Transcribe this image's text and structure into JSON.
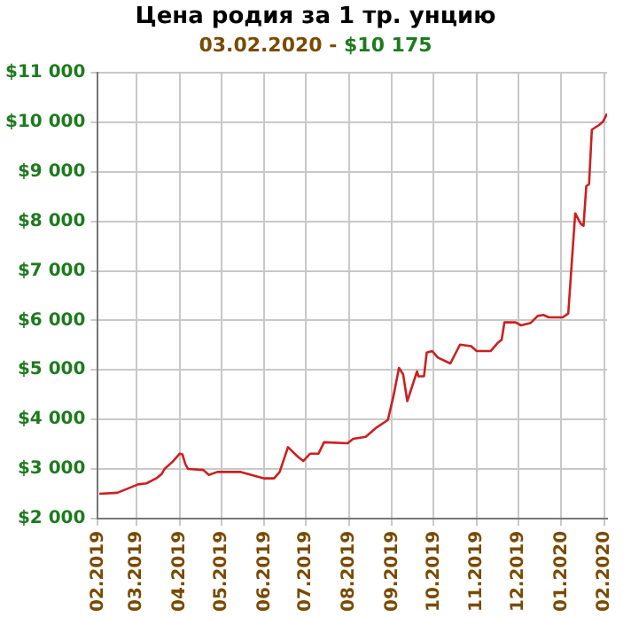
{
  "chart_data": {
    "type": "line",
    "title": "Цена родия за 1 тр. унцию",
    "subtitle": "03.02.2020  -  $10 175",
    "x": [
      "2019-02-02",
      "2019-02-15",
      "2019-03-02",
      "2019-03-08",
      "2019-03-15",
      "2019-03-19",
      "2019-03-21",
      "2019-03-27",
      "2019-04-01",
      "2019-04-03",
      "2019-04-05",
      "2019-04-07",
      "2019-04-18",
      "2019-04-22",
      "2019-04-28",
      "2019-05-15",
      "2019-06-01",
      "2019-06-08",
      "2019-06-12",
      "2019-06-18",
      "2019-06-25",
      "2019-06-29",
      "2019-07-04",
      "2019-07-10",
      "2019-07-14",
      "2019-07-31",
      "2019-08-04",
      "2019-08-13",
      "2019-08-21",
      "2019-08-29",
      "2019-09-02",
      "2019-09-06",
      "2019-09-09",
      "2019-09-12",
      "2019-09-19",
      "2019-09-20",
      "2019-09-24",
      "2019-09-26",
      "2019-09-30",
      "2019-10-04",
      "2019-10-13",
      "2019-10-20",
      "2019-10-28",
      "2019-11-01",
      "2019-11-11",
      "2019-11-16",
      "2019-11-19",
      "2019-11-21",
      "2019-11-29",
      "2019-12-03",
      "2019-12-10",
      "2019-12-15",
      "2019-12-19",
      "2019-12-23",
      "2020-01-02",
      "2020-01-06",
      "2020-01-11",
      "2020-01-15",
      "2020-01-17",
      "2020-01-19",
      "2020-01-21",
      "2020-01-23",
      "2020-01-28",
      "2020-01-31",
      "2020-02-03"
    ],
    "series": [
      {
        "color": "#cc1f1f",
        "values": [
          2500,
          2520,
          2690,
          2710,
          2810,
          2900,
          3000,
          3150,
          3310,
          3290,
          3100,
          3000,
          2980,
          2880,
          2940,
          2940,
          2810,
          2810,
          2940,
          3440,
          3250,
          3160,
          3310,
          3310,
          3540,
          3520,
          3610,
          3650,
          3840,
          3990,
          4470,
          5040,
          4910,
          4370,
          4970,
          4870,
          4870,
          5350,
          5380,
          5250,
          5130,
          5510,
          5480,
          5380,
          5380,
          5540,
          5610,
          5960,
          5960,
          5900,
          5950,
          6090,
          6110,
          6060,
          6060,
          6140,
          8160,
          7950,
          7910,
          8710,
          8750,
          9850,
          9940,
          10010,
          10175
        ]
      }
    ],
    "xlim": [
      "2019-02-01",
      "2020-02-03"
    ],
    "xticks": [
      {
        "value": "2019-02-01",
        "label": "02.2019"
      },
      {
        "value": "2019-03-01",
        "label": "03.2019"
      },
      {
        "value": "2019-04-01",
        "label": "04.2019"
      },
      {
        "value": "2019-05-01",
        "label": "05.2019"
      },
      {
        "value": "2019-06-01",
        "label": "06.2019"
      },
      {
        "value": "2019-07-01",
        "label": "07.2019"
      },
      {
        "value": "2019-08-01",
        "label": "08.2019"
      },
      {
        "value": "2019-09-01",
        "label": "09.2019"
      },
      {
        "value": "2019-10-01",
        "label": "10.2019"
      },
      {
        "value": "2019-11-01",
        "label": "11.2019"
      },
      {
        "value": "2019-12-01",
        "label": "12.2019"
      },
      {
        "value": "2020-01-01",
        "label": "01.2020"
      },
      {
        "value": "2020-02-01",
        "label": "02.2020"
      }
    ],
    "ylim": [
      2000,
      11000
    ],
    "yticks": [
      {
        "value": 2000,
        "label": "$2 000"
      },
      {
        "value": 3000,
        "label": "$3 000"
      },
      {
        "value": 4000,
        "label": "$4 000"
      },
      {
        "value": 5000,
        "label": "$5 000"
      },
      {
        "value": 6000,
        "label": "$6 000"
      },
      {
        "value": 7000,
        "label": "$7 000"
      },
      {
        "value": 8000,
        "label": "$8 000"
      },
      {
        "value": 9000,
        "label": "$9 000"
      },
      {
        "value": 10000,
        "label": "$10 000"
      },
      {
        "value": 11000,
        "label": "$11 000"
      }
    ],
    "grid": true,
    "legend": false,
    "marker": "none",
    "line_style": "solid"
  }
}
